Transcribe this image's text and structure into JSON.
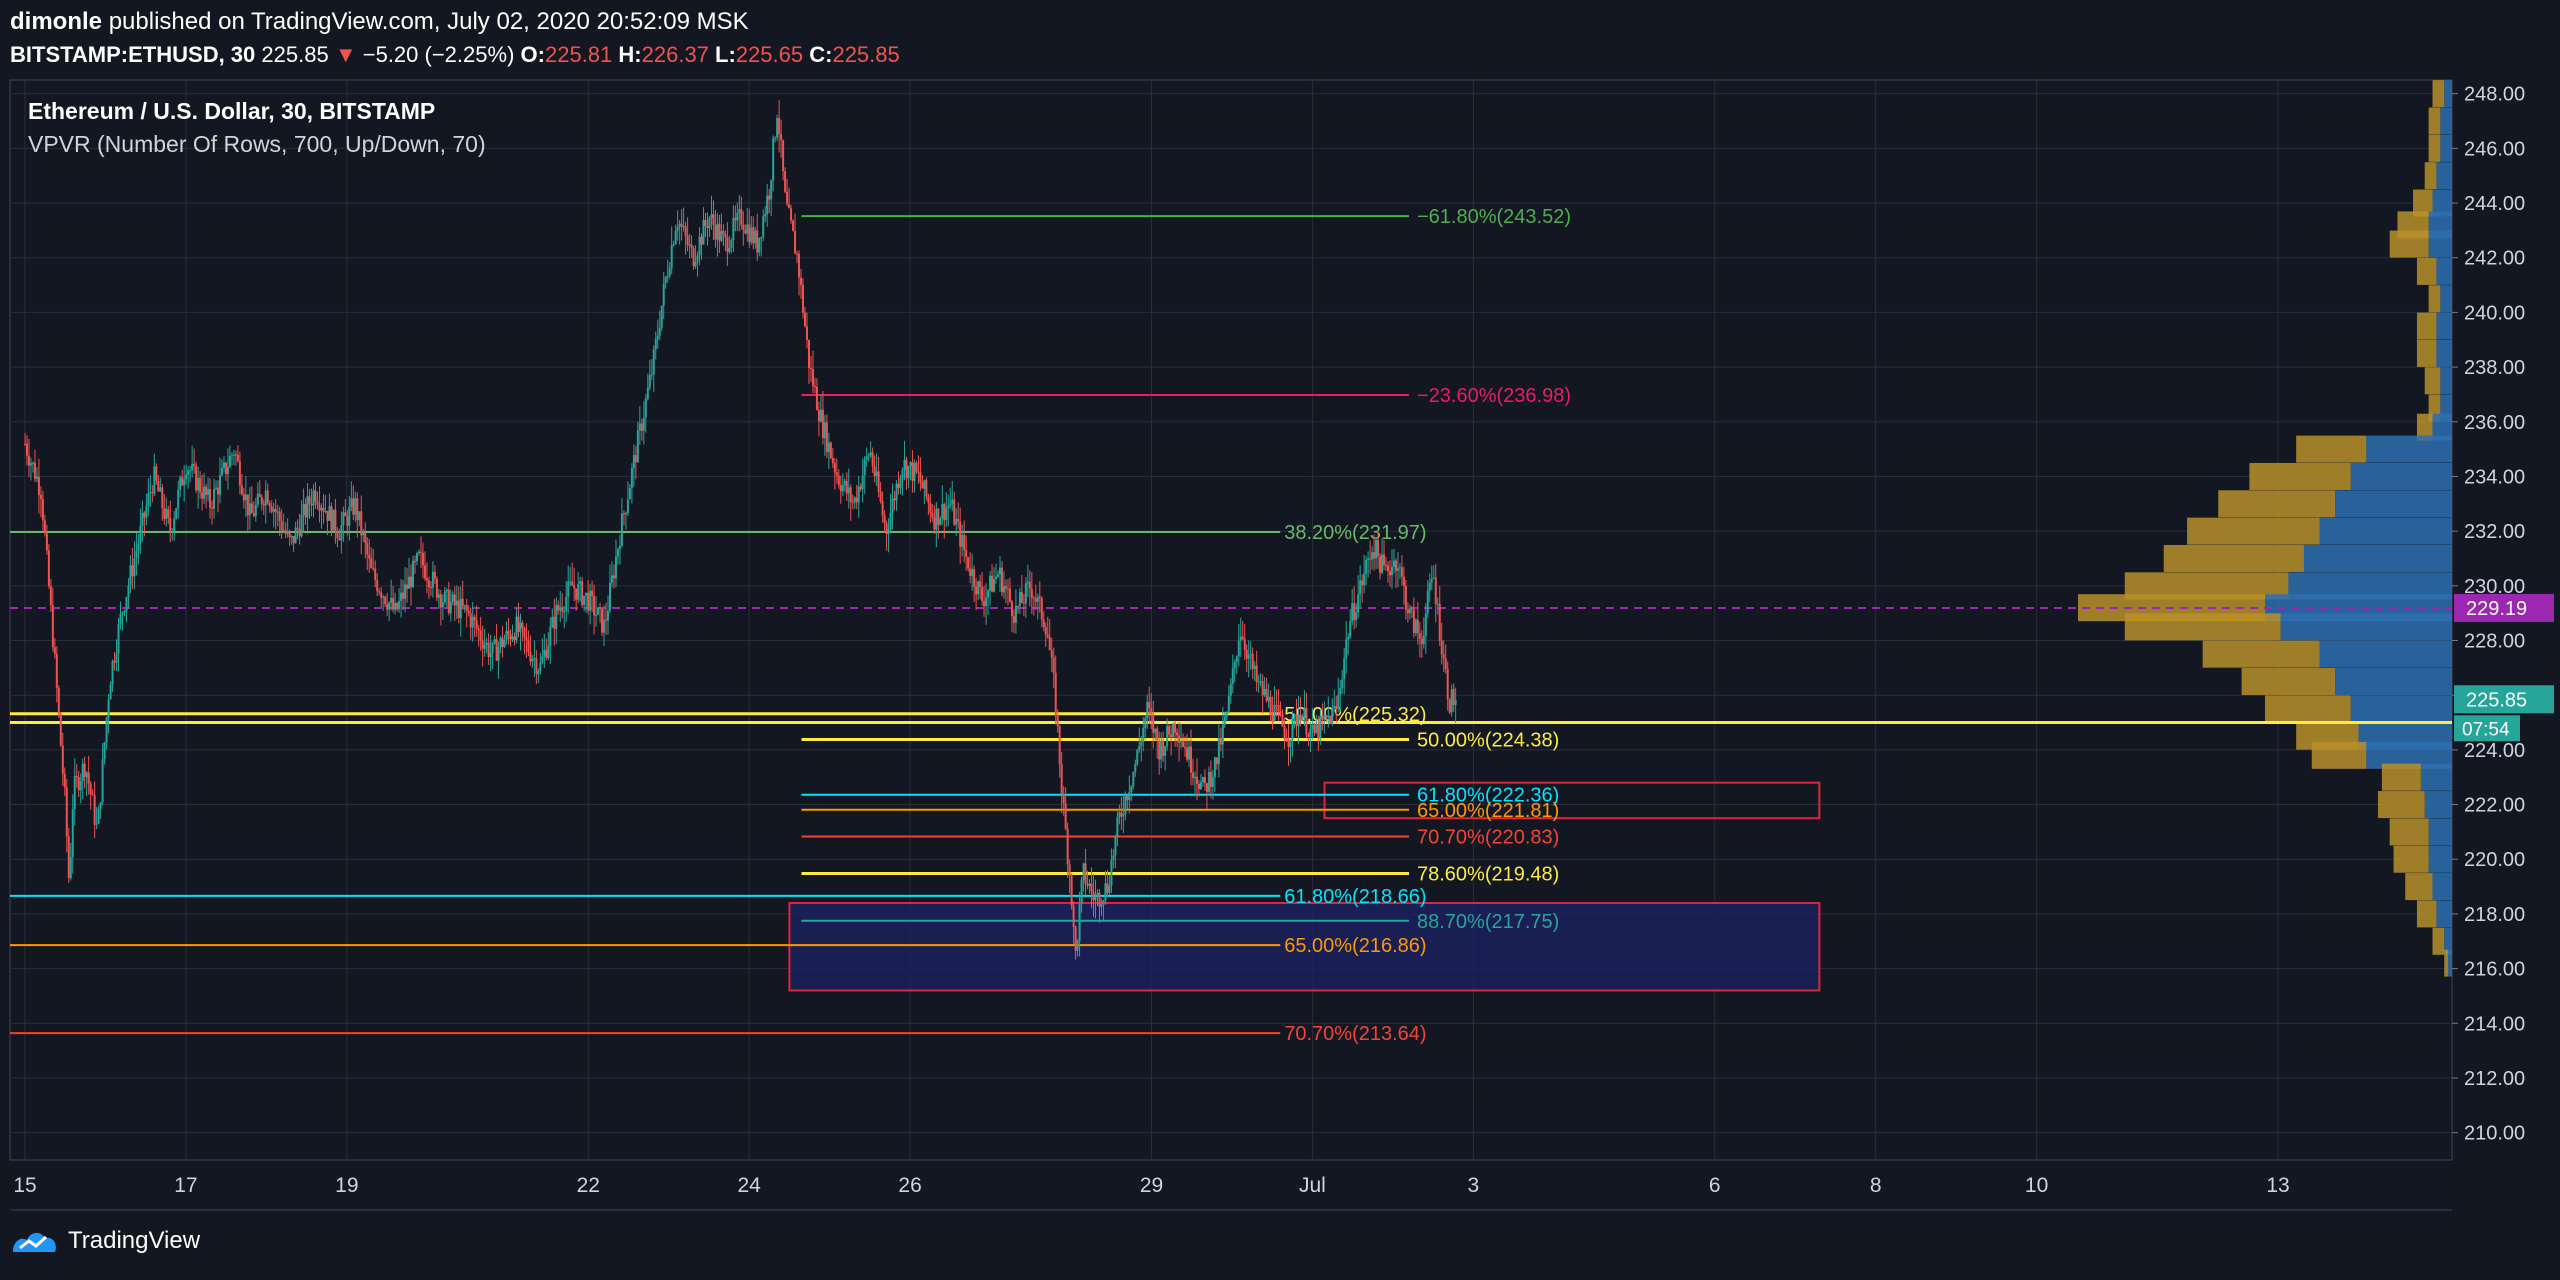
{
  "header": {
    "author": "dimonle",
    "published": "published on TradingView.com, July 02, 2020 20:52:09 MSK",
    "symbol": "BITSTAMP:ETHUSD, 30",
    "last": "225.85",
    "change": "−5.20 (−2.25%)",
    "o_label": "O:",
    "o": "225.81",
    "h_label": "H:",
    "h": "226.37",
    "l_label": "L:",
    "l": "225.65",
    "c_label": "C:",
    "c": "225.85"
  },
  "overlay": {
    "title": "Ethereum / U.S. Dollar, 30, BITSTAMP",
    "indicator": "VPVR (Number Of Rows, 700, Up/Down, 70)"
  },
  "footer": {
    "brand": "TradingView",
    "logo_icon": "tradingview-logo-icon"
  },
  "colors": {
    "background": "#131722",
    "grid": "#2a2e39",
    "up_candle": "#26a69a",
    "down_candle": "#ef5350",
    "vpvr_up": "#2e6fb0",
    "vpvr_down": "#b8902a",
    "current_price_bg": "#26a69a",
    "poc_label_bg": "#9c27b0"
  },
  "chart_data": {
    "type": "candlestick",
    "title": "Ethereum / U.S. Dollar, 30, BITSTAMP",
    "ylim": [
      209,
      248.5
    ],
    "y_ticks": [
      "210.00",
      "212.00",
      "214.00",
      "216.00",
      "218.00",
      "220.00",
      "222.00",
      "224.00",
      "226.00",
      "228.00",
      "230.00",
      "232.00",
      "234.00",
      "236.00",
      "238.00",
      "240.00",
      "242.00",
      "244.00",
      "246.00",
      "248.00"
    ],
    "x_ticks": [
      {
        "label": "15",
        "day": 15
      },
      {
        "label": "17",
        "day": 17
      },
      {
        "label": "19",
        "day": 19
      },
      {
        "label": "22",
        "day": 22
      },
      {
        "label": "24",
        "day": 24
      },
      {
        "label": "26",
        "day": 26
      },
      {
        "label": "29",
        "day": 29
      },
      {
        "label": "Jul",
        "day": 31
      },
      {
        "label": "3",
        "day": 33
      },
      {
        "label": "6",
        "day": 36
      },
      {
        "label": "8",
        "day": 38
      },
      {
        "label": "10",
        "day": 40
      },
      {
        "label": "13",
        "day": 43
      }
    ],
    "price_path": [
      [
        15.0,
        235.2
      ],
      [
        15.2,
        233.5
      ],
      [
        15.35,
        228.0
      ],
      [
        15.5,
        222.0
      ],
      [
        15.55,
        219.0
      ],
      [
        15.6,
        222.5
      ],
      [
        15.75,
        223.5
      ],
      [
        15.9,
        221.0
      ],
      [
        16.05,
        226.5
      ],
      [
        16.2,
        229.0
      ],
      [
        16.4,
        231.5
      ],
      [
        16.6,
        234.0
      ],
      [
        16.8,
        232.0
      ],
      [
        17.0,
        234.5
      ],
      [
        17.3,
        233.0
      ],
      [
        17.6,
        235.0
      ],
      [
        17.8,
        232.5
      ],
      [
        18.0,
        233.5
      ],
      [
        18.3,
        231.5
      ],
      [
        18.6,
        233.5
      ],
      [
        18.9,
        232.0
      ],
      [
        19.1,
        233.0
      ],
      [
        19.3,
        230.5
      ],
      [
        19.6,
        229.0
      ],
      [
        19.9,
        231.0
      ],
      [
        20.2,
        229.5
      ],
      [
        20.5,
        229.0
      ],
      [
        20.8,
        227.5
      ],
      [
        21.1,
        228.5
      ],
      [
        21.4,
        227.0
      ],
      [
        21.6,
        229.0
      ],
      [
        21.8,
        230.0
      ],
      [
        22.0,
        229.5
      ],
      [
        22.2,
        228.5
      ],
      [
        22.4,
        232.0
      ],
      [
        22.6,
        235.0
      ],
      [
        22.8,
        238.0
      ],
      [
        22.95,
        241.0
      ],
      [
        23.1,
        243.5
      ],
      [
        23.3,
        242.0
      ],
      [
        23.5,
        243.5
      ],
      [
        23.7,
        242.5
      ],
      [
        23.9,
        243.5
      ],
      [
        24.1,
        242.5
      ],
      [
        24.25,
        244.5
      ],
      [
        24.35,
        247.5
      ],
      [
        24.45,
        244.0
      ],
      [
        24.6,
        242.0
      ],
      [
        24.75,
        238.0
      ],
      [
        24.9,
        236.0
      ],
      [
        25.1,
        234.0
      ],
      [
        25.3,
        233.0
      ],
      [
        25.5,
        235.0
      ],
      [
        25.7,
        232.0
      ],
      [
        25.9,
        234.5
      ],
      [
        26.1,
        234.0
      ],
      [
        26.3,
        232.5
      ],
      [
        26.5,
        233.0
      ],
      [
        26.7,
        231.0
      ],
      [
        26.9,
        229.5
      ],
      [
        27.1,
        230.5
      ],
      [
        27.3,
        229.0
      ],
      [
        27.5,
        230.0
      ],
      [
        27.7,
        228.5
      ],
      [
        27.8,
        226.0
      ],
      [
        27.9,
        222.0
      ],
      [
        28.0,
        219.0
      ],
      [
        28.05,
        216.3
      ],
      [
        28.15,
        219.5
      ],
      [
        28.3,
        218.5
      ],
      [
        28.45,
        219.0
      ],
      [
        28.6,
        221.5
      ],
      [
        28.8,
        223.5
      ],
      [
        28.95,
        225.5
      ],
      [
        29.1,
        224.0
      ],
      [
        29.3,
        225.0
      ],
      [
        29.5,
        223.5
      ],
      [
        29.65,
        222.5
      ],
      [
        29.8,
        223.5
      ],
      [
        29.95,
        225.5
      ],
      [
        30.1,
        228.5
      ],
      [
        30.3,
        226.5
      ],
      [
        30.5,
        225.5
      ],
      [
        30.7,
        224.5
      ],
      [
        30.85,
        225.5
      ],
      [
        31.0,
        224.5
      ],
      [
        31.15,
        225.0
      ],
      [
        31.3,
        225.5
      ],
      [
        31.45,
        228.5
      ],
      [
        31.6,
        230.0
      ],
      [
        31.75,
        231.5
      ],
      [
        31.9,
        230.5
      ],
      [
        32.05,
        231.0
      ],
      [
        32.2,
        229.0
      ],
      [
        32.35,
        228.0
      ],
      [
        32.5,
        230.5
      ],
      [
        32.6,
        228.0
      ],
      [
        32.7,
        225.8
      ],
      [
        32.78,
        225.85
      ]
    ],
    "horizontal_levels": [
      {
        "label": "−61.80%(243.52)",
        "value": 243.52,
        "color": "#4caf50",
        "x_from": 24.65,
        "x_to": 32.2,
        "label_x": 32.2
      },
      {
        "label": "−23.60%(236.98)",
        "value": 236.98,
        "color": "#e91e63",
        "x_from": 24.65,
        "x_to": 32.2,
        "label_x": 32.2
      },
      {
        "label": "38.20%(231.97)",
        "value": 231.97,
        "color": "#66bb6a",
        "x_from": 14.8,
        "x_to": 30.6,
        "label_x": 30.55
      },
      {
        "label": "50.00%(225.32)",
        "value": 225.32,
        "color": "#ffeb3b",
        "x_from": 14.8,
        "x_to": 30.6,
        "label_x": 30.55
      },
      {
        "label": "50.00%(224.38)",
        "value": 224.38,
        "color": "#ffeb3b",
        "x_from": 24.65,
        "x_to": 32.2,
        "label_x": 32.2
      },
      {
        "label": "61.80%(222.36)",
        "value": 222.36,
        "color": "#00e5ff",
        "x_from": 24.65,
        "x_to": 32.2,
        "label_x": 32.2
      },
      {
        "label": "65.00%(221.81)",
        "value": 221.81,
        "color": "#ff9800",
        "x_from": 24.65,
        "x_to": 32.2,
        "label_x": 32.2
      },
      {
        "label": "70.70%(220.83)",
        "value": 220.83,
        "color": "#f44336",
        "x_from": 24.65,
        "x_to": 32.2,
        "label_x": 32.2
      },
      {
        "label": "78.60%(219.48)",
        "value": 219.48,
        "color": "#ffeb3b",
        "x_from": 24.65,
        "x_to": 32.2,
        "label_x": 32.2
      },
      {
        "label": "61.80%(218.66)",
        "value": 218.66,
        "color": "#00e5ff",
        "x_from": 14.8,
        "x_to": 30.6,
        "label_x": 30.55
      },
      {
        "label": "88.70%(217.75)",
        "value": 217.75,
        "color": "#26a69a",
        "x_from": 24.65,
        "x_to": 32.2,
        "label_x": 32.2
      },
      {
        "label": "65.00%(216.86)",
        "value": 216.86,
        "color": "#ff9800",
        "x_from": 14.8,
        "x_to": 30.6,
        "label_x": 30.55
      },
      {
        "label": "70.70%(213.64)",
        "value": 213.64,
        "color": "#f44336",
        "x_from": 14.8,
        "x_to": 30.6,
        "label_x": 30.55
      }
    ],
    "extra_line": {
      "value": 225.0,
      "color": "#ffeb3b",
      "x_from": 14.8,
      "x_to": 45.2
    },
    "zones": [
      {
        "x_from": 24.5,
        "x_to": 37.3,
        "y_from": 215.2,
        "y_to": 218.4,
        "border": "#e0253a",
        "fill": "#1c2160"
      },
      {
        "x_from": 31.15,
        "x_to": 37.3,
        "y_from": 221.5,
        "y_to": 222.8,
        "border": "#e0253a",
        "fill": "none"
      }
    ],
    "poc": {
      "value": 229.19,
      "label": "229.19",
      "color": "#9c27b0"
    },
    "current_price": {
      "value": 225.85,
      "label": "225.85",
      "countdown": "07:54"
    },
    "vpvr_profile": [
      {
        "price": 248.0,
        "up": 2,
        "down": 3
      },
      {
        "price": 247.0,
        "up": 3,
        "down": 3
      },
      {
        "price": 246.0,
        "up": 3,
        "down": 3
      },
      {
        "price": 245.0,
        "up": 4,
        "down": 3
      },
      {
        "price": 244.0,
        "up": 5,
        "down": 5
      },
      {
        "price": 243.2,
        "up": 6,
        "down": 8
      },
      {
        "price": 242.5,
        "up": 6,
        "down": 10
      },
      {
        "price": 241.5,
        "up": 4,
        "down": 5
      },
      {
        "price": 240.5,
        "up": 3,
        "down": 3
      },
      {
        "price": 239.5,
        "up": 4,
        "down": 5
      },
      {
        "price": 238.5,
        "up": 4,
        "down": 5
      },
      {
        "price": 237.5,
        "up": 3,
        "down": 4
      },
      {
        "price": 236.5,
        "up": 3,
        "down": 3
      },
      {
        "price": 235.8,
        "up": 5,
        "down": 4
      },
      {
        "price": 235.0,
        "up": 22,
        "down": 18
      },
      {
        "price": 234.0,
        "up": 26,
        "down": 26
      },
      {
        "price": 233.0,
        "up": 30,
        "down": 30
      },
      {
        "price": 232.0,
        "up": 34,
        "down": 34
      },
      {
        "price": 231.0,
        "up": 38,
        "down": 36
      },
      {
        "price": 230.0,
        "up": 42,
        "down": 42
      },
      {
        "price": 229.2,
        "up": 48,
        "down": 48
      },
      {
        "price": 228.5,
        "up": 44,
        "down": 40
      },
      {
        "price": 227.5,
        "up": 34,
        "down": 30
      },
      {
        "price": 226.5,
        "up": 30,
        "down": 24
      },
      {
        "price": 225.5,
        "up": 26,
        "down": 22
      },
      {
        "price": 224.5,
        "up": 24,
        "down": 16
      },
      {
        "price": 223.8,
        "up": 22,
        "down": 14
      },
      {
        "price": 223.0,
        "up": 8,
        "down": 10
      },
      {
        "price": 222.0,
        "up": 7,
        "down": 12
      },
      {
        "price": 221.0,
        "up": 6,
        "down": 10
      },
      {
        "price": 220.0,
        "up": 6,
        "down": 9
      },
      {
        "price": 219.0,
        "up": 5,
        "down": 7
      },
      {
        "price": 218.0,
        "up": 4,
        "down": 5
      },
      {
        "price": 217.0,
        "up": 2,
        "down": 3
      },
      {
        "price": 216.2,
        "up": 1,
        "down": 1
      }
    ]
  }
}
